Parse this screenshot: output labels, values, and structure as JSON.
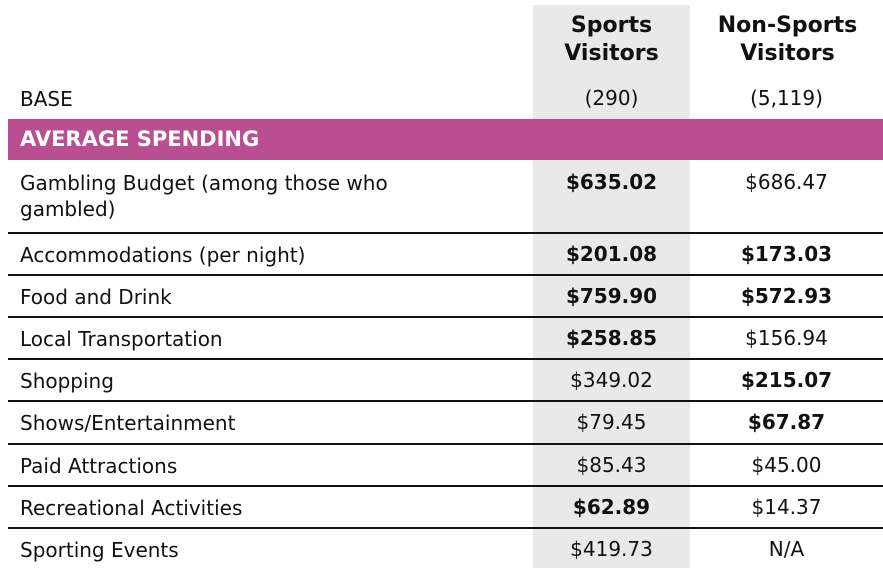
{
  "columns": {
    "sports": "Sports Visitors",
    "non_sports": "Non-Sports Visitors"
  },
  "base": {
    "label": "BASE",
    "sports": "(290)",
    "non_sports": "(5,119)"
  },
  "section": "AVERAGE SPENDING",
  "rows": [
    {
      "label": "Gambling Budget (among those who gambled)",
      "sports": "$635.02",
      "non_sports": "$686.47"
    },
    {
      "label": "Accommodations (per night)",
      "sports": "$201.08",
      "non_sports": "$173.03"
    },
    {
      "label": "Food and Drink",
      "sports": "$759.90",
      "non_sports": "$572.93"
    },
    {
      "label": "Local Transportation",
      "sports": "$258.85",
      "non_sports": "$156.94"
    },
    {
      "label": "Shopping",
      "sports": "$349.02",
      "non_sports": "$215.07"
    },
    {
      "label": "Shows/Entertainment",
      "sports": "$79.45",
      "non_sports": "$67.87"
    },
    {
      "label": "Paid Attractions",
      "sports": "$85.43",
      "non_sports": "$45.00"
    },
    {
      "label": "Recreational Activities",
      "sports": "$62.89",
      "non_sports": "$14.37"
    },
    {
      "label": "Sporting Events",
      "sports": "$419.73",
      "non_sports": "N/A"
    }
  ]
}
